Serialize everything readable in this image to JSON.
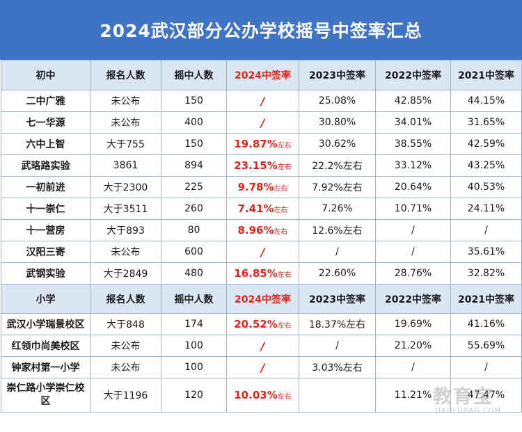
{
  "title": "2024武汉部分公办学校摇号中签率汇总",
  "middle": {
    "headers": [
      "初中",
      "报名人数",
      "摇中人数",
      "2024中签率",
      "2023中签率",
      "2022中签率",
      "2021中签率"
    ],
    "rows": [
      {
        "name": "二中广雅",
        "applicants": "未公布",
        "selected": "150",
        "r2024": "/",
        "r2024_suffix": "",
        "r2023": "25.08%",
        "r2022": "42.85%",
        "r2021": "44.15%"
      },
      {
        "name": "七一华源",
        "applicants": "未公布",
        "selected": "400",
        "r2024": "/",
        "r2024_suffix": "",
        "r2023": "30.80%",
        "r2022": "34.01%",
        "r2021": "31.65%"
      },
      {
        "name": "六中上智",
        "applicants": "大于755",
        "selected": "150",
        "r2024": "19.87%",
        "r2024_suffix": "左右",
        "r2023": "30.62%",
        "r2022": "38.55%",
        "r2021": "42.59%"
      },
      {
        "name": "武珞路实验",
        "applicants": "3861",
        "selected": "894",
        "r2024": "23.15%",
        "r2024_suffix": "左右",
        "r2023": "22.2%左右",
        "r2022": "33.12%",
        "r2021": "43.25%"
      },
      {
        "name": "一初前进",
        "applicants": "大于2300",
        "selected": "225",
        "r2024": "9.78%",
        "r2024_suffix": "左右",
        "r2023": "7.92%左右",
        "r2022": "20.64%",
        "r2021": "40.53%"
      },
      {
        "name": "十一崇仁",
        "applicants": "大于3511",
        "selected": "260",
        "r2024": "7.41%",
        "r2024_suffix": "左右",
        "r2023": "7.26%",
        "r2022": "10.71%",
        "r2021": "24.11%"
      },
      {
        "name": "十一营房",
        "applicants": "大于893",
        "selected": "80",
        "r2024": "8.96%",
        "r2024_suffix": "左右",
        "r2023": "12.6%左右",
        "r2022": "/",
        "r2021": "/"
      },
      {
        "name": "汉阳三寄",
        "applicants": "未公布",
        "selected": "600",
        "r2024": "/",
        "r2024_suffix": "",
        "r2023": "/",
        "r2022": "/",
        "r2021": "35.61%"
      },
      {
        "name": "武钢实验",
        "applicants": "大于2849",
        "selected": "480",
        "r2024": "16.85%",
        "r2024_suffix": "左右",
        "r2023": "22.60%",
        "r2022": "28.76%",
        "r2021": "32.82%"
      }
    ]
  },
  "primary": {
    "headers": [
      "小学",
      "报名人数",
      "摇中人数",
      "2024中签率",
      "2023中签率",
      "2022中签率",
      "2021中签率"
    ],
    "rows": [
      {
        "name": "武汉小学瑞景校区",
        "applicants": "大于848",
        "selected": "174",
        "r2024": "20.52%",
        "r2024_suffix": "左右",
        "r2023": "18.37%左右",
        "r2022": "19.69%",
        "r2021": "41.16%"
      },
      {
        "name": "红领巾尚美校区",
        "applicants": "未公布",
        "selected": "100",
        "r2024": "/",
        "r2024_suffix": "",
        "r2023": "/",
        "r2022": "21.20%",
        "r2021": "55.69%"
      },
      {
        "name": "钟家村第一小学",
        "applicants": "未公布",
        "selected": "100",
        "r2024": "/",
        "r2024_suffix": "",
        "r2023": "3.03%左右",
        "r2022": "/",
        "r2021": "/"
      },
      {
        "name": "崇仁路小学崇仁校区",
        "applicants": "大于1196",
        "selected": "120",
        "r2024": "10.03%",
        "r2024_suffix": "左右",
        "r2023": "",
        "r2022": "11.21%",
        "r2021": "47.47%"
      }
    ]
  },
  "watermark": {
    "main": "教育宝",
    "sub": "JIAOYUBAO.COM"
  },
  "colors": {
    "title_bg": "#3f73c3",
    "header_bg": "#dbe6f4",
    "highlight": "#e2231a",
    "border": "#9eb3d2"
  }
}
